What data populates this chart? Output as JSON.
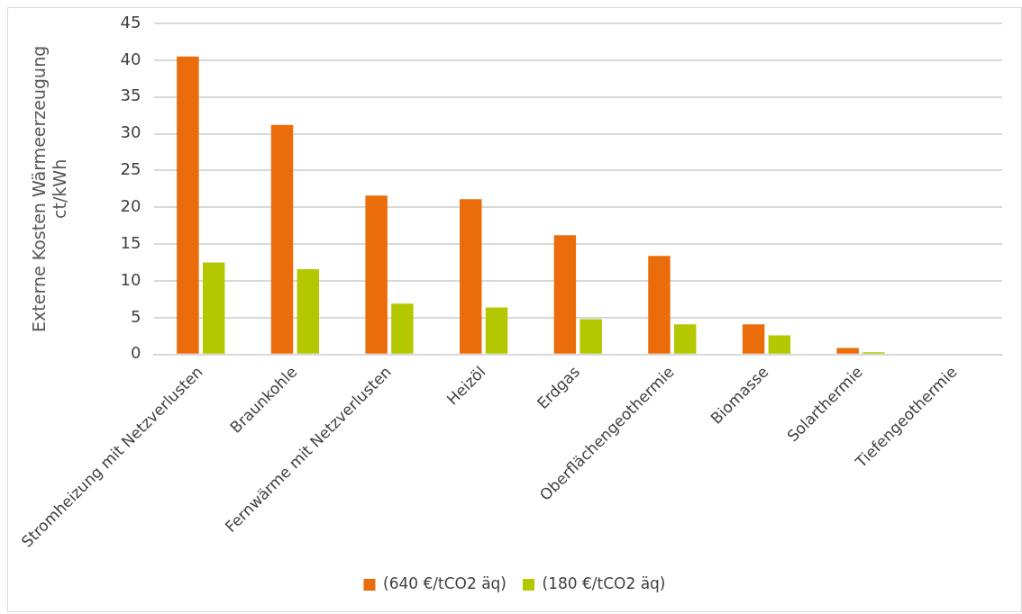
{
  "chart_data": {
    "type": "bar",
    "ylabel": "Externe Kosten Wärmeerzeugung\nct/kWh",
    "categories": [
      "Stromheizung mit Netzverlusten",
      "Braunkohle",
      "Fernwärme mit Netzverlusten",
      "Heizöl",
      "Erdgas",
      "Oberflächengeothermie",
      "Biomasse",
      "Solarthermie",
      "Tiefengeothermie"
    ],
    "series": [
      {
        "name": "(640 €/tCO2 äq)",
        "color": "#eb6c0b",
        "values": [
          40.5,
          31.2,
          21.6,
          21.1,
          16.2,
          13.4,
          4.1,
          0.9,
          0
        ]
      },
      {
        "name": "(180 €/tCO2 äq)",
        "color": "#b4c800",
        "values": [
          12.5,
          11.6,
          6.9,
          6.4,
          4.8,
          4.1,
          2.6,
          0.3,
          0
        ]
      }
    ],
    "ylim": [
      0,
      45
    ],
    "yticks": [
      0,
      5,
      10,
      15,
      20,
      25,
      30,
      35,
      40,
      45
    ],
    "grid": "y",
    "legend": "bottom"
  }
}
